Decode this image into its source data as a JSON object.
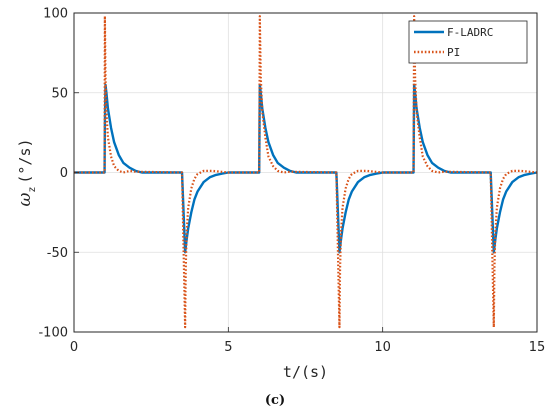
{
  "chart_data": {
    "type": "line",
    "xlabel": "t/(s)",
    "ylabel_main": "ω",
    "ylabel_sub": "z",
    "ylabel_unit": "(°/s)",
    "xlim": [
      0,
      15
    ],
    "ylim": [
      -100,
      100
    ],
    "xticks": [
      0,
      5,
      10,
      15
    ],
    "yticks": [
      -100,
      -50,
      0,
      50,
      100
    ],
    "grid": true,
    "legend_position": "top-right",
    "caption": "(c)",
    "series": [
      {
        "name": "F-LADRC",
        "color": "#0072BD",
        "style": "solid",
        "x": [
          0,
          0.99,
          1.0,
          1.02,
          1.05,
          1.1,
          1.2,
          1.3,
          1.45,
          1.6,
          1.8,
          2.0,
          2.2,
          3.5,
          3.6,
          3.65,
          3.7,
          3.8,
          3.9,
          4.0,
          4.2,
          4.4,
          4.6,
          4.8,
          5.0,
          5.5,
          6.0,
          6.02,
          6.05,
          6.1,
          6.2,
          6.3,
          6.45,
          6.6,
          6.8,
          7.0,
          7.2,
          8.5,
          8.6,
          8.65,
          8.7,
          8.8,
          8.9,
          9.0,
          9.2,
          9.4,
          9.6,
          9.8,
          10.0,
          10.5,
          11.0,
          11.02,
          11.05,
          11.1,
          11.2,
          11.3,
          11.45,
          11.6,
          11.8,
          12.0,
          12.2,
          13.5,
          13.6,
          13.65,
          13.7,
          13.8,
          13.9,
          14.0,
          14.2,
          14.4,
          14.6,
          14.8,
          15.0
        ],
        "y": [
          0,
          0,
          30,
          55,
          50,
          40,
          28,
          19,
          11,
          6,
          3,
          1,
          0,
          0,
          -50,
          -42,
          -35,
          -25,
          -17,
          -12,
          -6,
          -3,
          -1.5,
          -0.7,
          0,
          0,
          0,
          55,
          50,
          40,
          28,
          19,
          11,
          6,
          3,
          1,
          0,
          0,
          -50,
          -42,
          -35,
          -25,
          -17,
          -12,
          -6,
          -3,
          -1.5,
          -0.7,
          0,
          0,
          0,
          55,
          50,
          40,
          28,
          19,
          11,
          6,
          3,
          1,
          0,
          0,
          -50,
          -42,
          -35,
          -25,
          -17,
          -12,
          -6,
          -3,
          -1.5,
          -0.7,
          0
        ]
      },
      {
        "name": "PI",
        "color": "#D95319",
        "style": "dotted",
        "x": [
          0,
          0.99,
          1.0,
          1.02,
          1.05,
          1.1,
          1.2,
          1.3,
          1.45,
          1.6,
          1.8,
          2.0,
          3.5,
          3.6,
          3.62,
          3.65,
          3.7,
          3.8,
          3.9,
          4.0,
          4.2,
          4.5,
          5.0,
          6.0,
          6.02,
          6.05,
          6.1,
          6.2,
          6.3,
          6.45,
          6.6,
          6.8,
          7.0,
          8.5,
          8.6,
          8.62,
          8.65,
          8.7,
          8.8,
          8.9,
          9.0,
          9.2,
          9.5,
          10.0,
          11.0,
          11.02,
          11.05,
          11.1,
          11.2,
          11.3,
          11.45,
          11.6,
          11.8,
          12.0,
          13.5,
          13.6,
          13.62,
          13.65,
          13.7,
          13.8,
          13.9,
          14.0,
          14.2,
          14.5,
          15.0
        ],
        "y": [
          0,
          0,
          98,
          60,
          38,
          22,
          10,
          4,
          1,
          0,
          1,
          0.5,
          0,
          -97,
          -60,
          -38,
          -22,
          -10,
          -4,
          -1,
          1,
          1,
          0,
          0,
          98,
          60,
          38,
          22,
          10,
          4,
          1,
          0,
          0.5,
          0,
          -97,
          -60,
          -38,
          -22,
          -10,
          -4,
          -1,
          1,
          1,
          0,
          0,
          98,
          60,
          38,
          22,
          10,
          4,
          1,
          0,
          0.5,
          0,
          -97,
          -60,
          -38,
          -22,
          -10,
          -4,
          -1,
          1,
          1,
          0
        ]
      }
    ]
  }
}
